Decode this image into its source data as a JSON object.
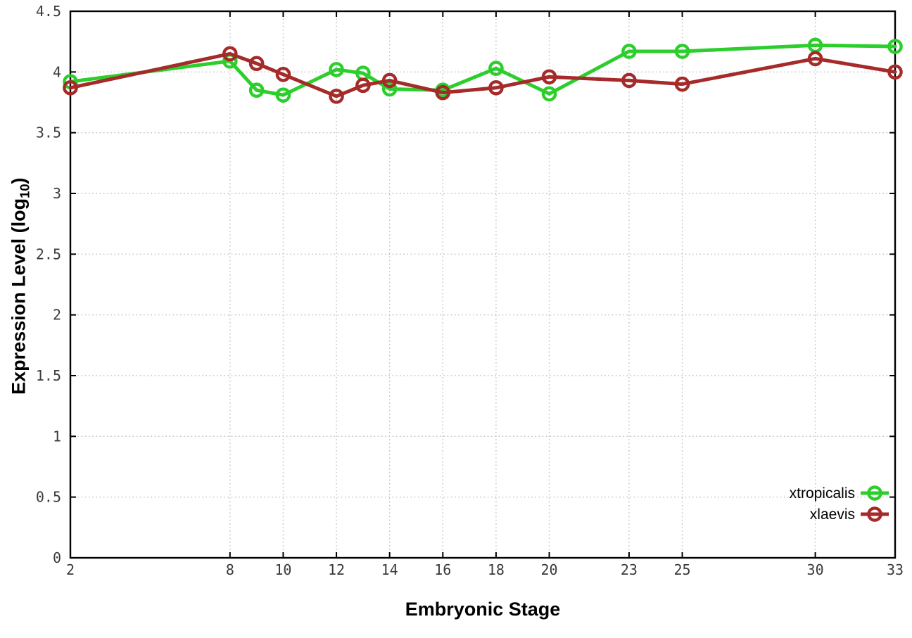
{
  "chart_data": {
    "type": "line",
    "title": "",
    "xlabel": "Embryonic Stage",
    "ylabel": "Expression Level (log10)",
    "ylabel_parts": {
      "main": "Expression Level (log",
      "sub": "10",
      "end": ")"
    },
    "xlim": [
      2,
      33
    ],
    "ylim": [
      0,
      4.5
    ],
    "grid": true,
    "legend_position": "bottom-right",
    "x": [
      2,
      8,
      9,
      10,
      12,
      13,
      14,
      16,
      18,
      20,
      23,
      25,
      30,
      33
    ],
    "xticks": [
      2,
      8,
      10,
      12,
      14,
      16,
      18,
      20,
      23,
      25,
      30,
      33
    ],
    "xtick_labels": [
      "2",
      "8",
      "10",
      "12",
      "14",
      "16",
      "18",
      "20",
      "23",
      "25",
      "30",
      "33"
    ],
    "yticks": [
      0,
      0.5,
      1,
      1.5,
      2,
      2.5,
      3,
      3.5,
      4,
      4.5
    ],
    "ytick_labels": [
      "0",
      "0.5",
      "1",
      "1.5",
      "2",
      "2.5",
      "3",
      "3.5",
      "4",
      "4.5"
    ],
    "series": [
      {
        "name": "xtropicalis",
        "color": "#2CCE2C",
        "values": [
          3.92,
          4.09,
          3.85,
          3.81,
          4.02,
          3.99,
          3.86,
          3.85,
          4.03,
          3.82,
          4.17,
          4.17,
          4.22,
          4.21
        ]
      },
      {
        "name": "xlaevis",
        "color": "#A52A2A",
        "values": [
          3.87,
          4.15,
          4.07,
          3.98,
          3.8,
          3.89,
          3.93,
          3.83,
          3.87,
          3.96,
          3.93,
          3.9,
          4.11,
          4.0
        ]
      }
    ],
    "marker": "open-circle",
    "colors": {
      "background": "#FFFFFF",
      "grid": "#C0C0C0",
      "axis": "#000000",
      "tick_label": "#3A3A3A"
    }
  }
}
